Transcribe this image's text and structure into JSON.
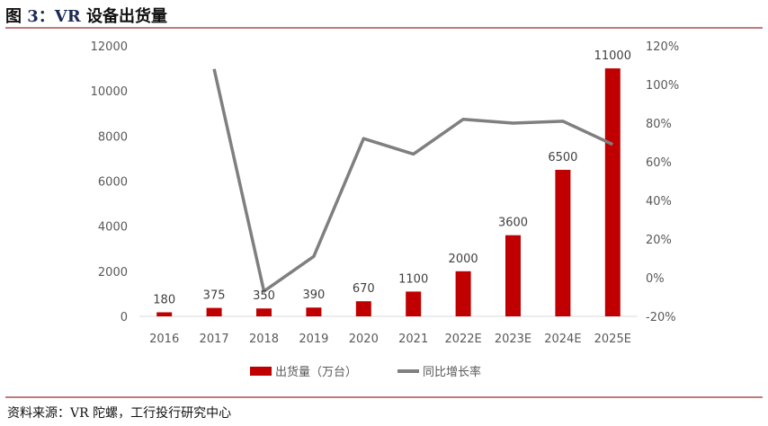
{
  "title_prefix": "图 ",
  "title_num": "3：VR",
  "title_rest": " 设备出货量",
  "source": "资料来源：VR 陀螺，工行投行研究中心",
  "chart_data": {
    "type": "bar+line",
    "categories": [
      "2016",
      "2017",
      "2018",
      "2019",
      "2020",
      "2021",
      "2022E",
      "2023E",
      "2024E",
      "2025E"
    ],
    "series": [
      {
        "name": "出货量（万台）",
        "type": "bar",
        "axis": "left",
        "color": "#c00000",
        "values": [
          180,
          375,
          350,
          390,
          670,
          1100,
          2000,
          3600,
          6500,
          11000
        ],
        "labels": [
          "180",
          "375",
          "350",
          "390",
          "670",
          "1100",
          "2000",
          "3600",
          "6500",
          "11000"
        ]
      },
      {
        "name": "同比增长率",
        "type": "line",
        "axis": "right",
        "color": "#7f7f7f",
        "values": [
          null,
          108,
          -7,
          11,
          72,
          64,
          82,
          80,
          81,
          69
        ]
      }
    ],
    "left_axis": {
      "ylim": [
        0,
        12000
      ],
      "ticks": [
        "0",
        "2000",
        "4000",
        "6000",
        "8000",
        "10000",
        "12000"
      ]
    },
    "right_axis": {
      "ylim": [
        -20,
        120
      ],
      "ticks": [
        "-20%",
        "0%",
        "20%",
        "40%",
        "60%",
        "80%",
        "100%",
        "120%"
      ]
    },
    "grid": false,
    "legend": "bottom"
  }
}
